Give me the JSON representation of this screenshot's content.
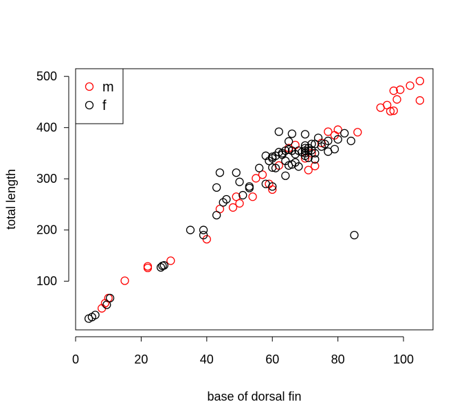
{
  "chart_data": {
    "type": "scatter",
    "title": "",
    "xlabel": "base of dorsal fin",
    "ylabel": "total length",
    "xlim": [
      0,
      109
    ],
    "ylim": [
      5,
      515
    ],
    "x_ticks": [
      0,
      20,
      40,
      60,
      80,
      100
    ],
    "y_ticks": [
      100,
      200,
      300,
      400,
      500
    ],
    "grid": false,
    "legend_position": "top-left",
    "series": [
      {
        "name": "m",
        "color": "#ff0000",
        "marker": "open-circle",
        "points": [
          [
            8,
            47
          ],
          [
            9,
            57
          ],
          [
            10,
            67
          ],
          [
            15,
            101
          ],
          [
            22,
            126
          ],
          [
            22,
            129
          ],
          [
            29,
            140
          ],
          [
            40,
            182
          ],
          [
            44,
            241
          ],
          [
            48,
            244
          ],
          [
            49,
            265
          ],
          [
            50,
            252
          ],
          [
            54,
            265
          ],
          [
            55,
            301
          ],
          [
            57,
            308
          ],
          [
            59,
            290
          ],
          [
            60,
            279
          ],
          [
            62,
            326
          ],
          [
            65,
            360
          ],
          [
            67,
            366
          ],
          [
            70,
            340
          ],
          [
            71,
            317
          ],
          [
            72,
            350
          ],
          [
            73,
            325
          ],
          [
            75,
            370
          ],
          [
            77,
            392
          ],
          [
            79,
            385
          ],
          [
            80,
            396
          ],
          [
            86,
            391
          ],
          [
            93,
            439
          ],
          [
            95,
            444
          ],
          [
            96,
            432
          ],
          [
            97,
            472
          ],
          [
            97,
            433
          ],
          [
            98,
            455
          ],
          [
            99,
            474
          ],
          [
            102,
            482
          ],
          [
            105,
            491
          ],
          [
            105,
            453
          ]
        ]
      },
      {
        "name": "f",
        "color": "#000000",
        "marker": "open-circle",
        "points": [
          [
            4,
            27
          ],
          [
            5,
            30
          ],
          [
            6,
            34
          ],
          [
            9.5,
            54
          ],
          [
            10.5,
            67
          ],
          [
            26,
            127
          ],
          [
            26.5,
            130
          ],
          [
            27,
            131
          ],
          [
            35,
            200
          ],
          [
            39,
            200
          ],
          [
            39,
            190
          ],
          [
            43,
            283
          ],
          [
            43,
            229
          ],
          [
            44,
            312
          ],
          [
            45,
            254
          ],
          [
            46,
            260
          ],
          [
            49,
            312
          ],
          [
            50,
            294
          ],
          [
            51,
            268
          ],
          [
            53,
            282
          ],
          [
            53,
            285
          ],
          [
            56,
            321
          ],
          [
            58,
            290
          ],
          [
            58,
            345
          ],
          [
            59,
            335
          ],
          [
            60,
            340
          ],
          [
            60,
            343
          ],
          [
            60,
            322
          ],
          [
            60,
            285
          ],
          [
            61,
            321
          ],
          [
            61,
            345
          ],
          [
            62,
            392
          ],
          [
            62,
            352
          ],
          [
            63,
            350
          ],
          [
            63,
            347
          ],
          [
            64,
            306
          ],
          [
            64,
            335
          ],
          [
            64,
            355
          ],
          [
            65,
            373
          ],
          [
            65,
            326
          ],
          [
            65,
            357
          ],
          [
            66,
            388
          ],
          [
            66,
            328
          ],
          [
            66,
            355
          ],
          [
            67,
            348
          ],
          [
            67,
            332
          ],
          [
            68,
            324
          ],
          [
            68,
            355
          ],
          [
            69,
            352
          ],
          [
            70,
            387
          ],
          [
            70,
            365
          ],
          [
            70,
            360
          ],
          [
            70,
            355
          ],
          [
            70,
            350
          ],
          [
            70,
            345
          ],
          [
            71,
            341
          ],
          [
            71,
            360
          ],
          [
            71,
            355
          ],
          [
            72,
            368
          ],
          [
            72,
            356
          ],
          [
            73,
            350
          ],
          [
            73,
            338
          ],
          [
            73,
            368
          ],
          [
            74,
            380
          ],
          [
            75,
            363
          ],
          [
            76,
            368
          ],
          [
            77,
            374
          ],
          [
            77,
            353
          ],
          [
            79,
            358
          ],
          [
            80,
            377
          ],
          [
            82,
            389
          ],
          [
            84,
            374
          ],
          [
            85,
            190
          ]
        ]
      }
    ],
    "legend": [
      {
        "label": "m",
        "color": "#ff0000"
      },
      {
        "label": "f",
        "color": "#000000"
      }
    ]
  }
}
